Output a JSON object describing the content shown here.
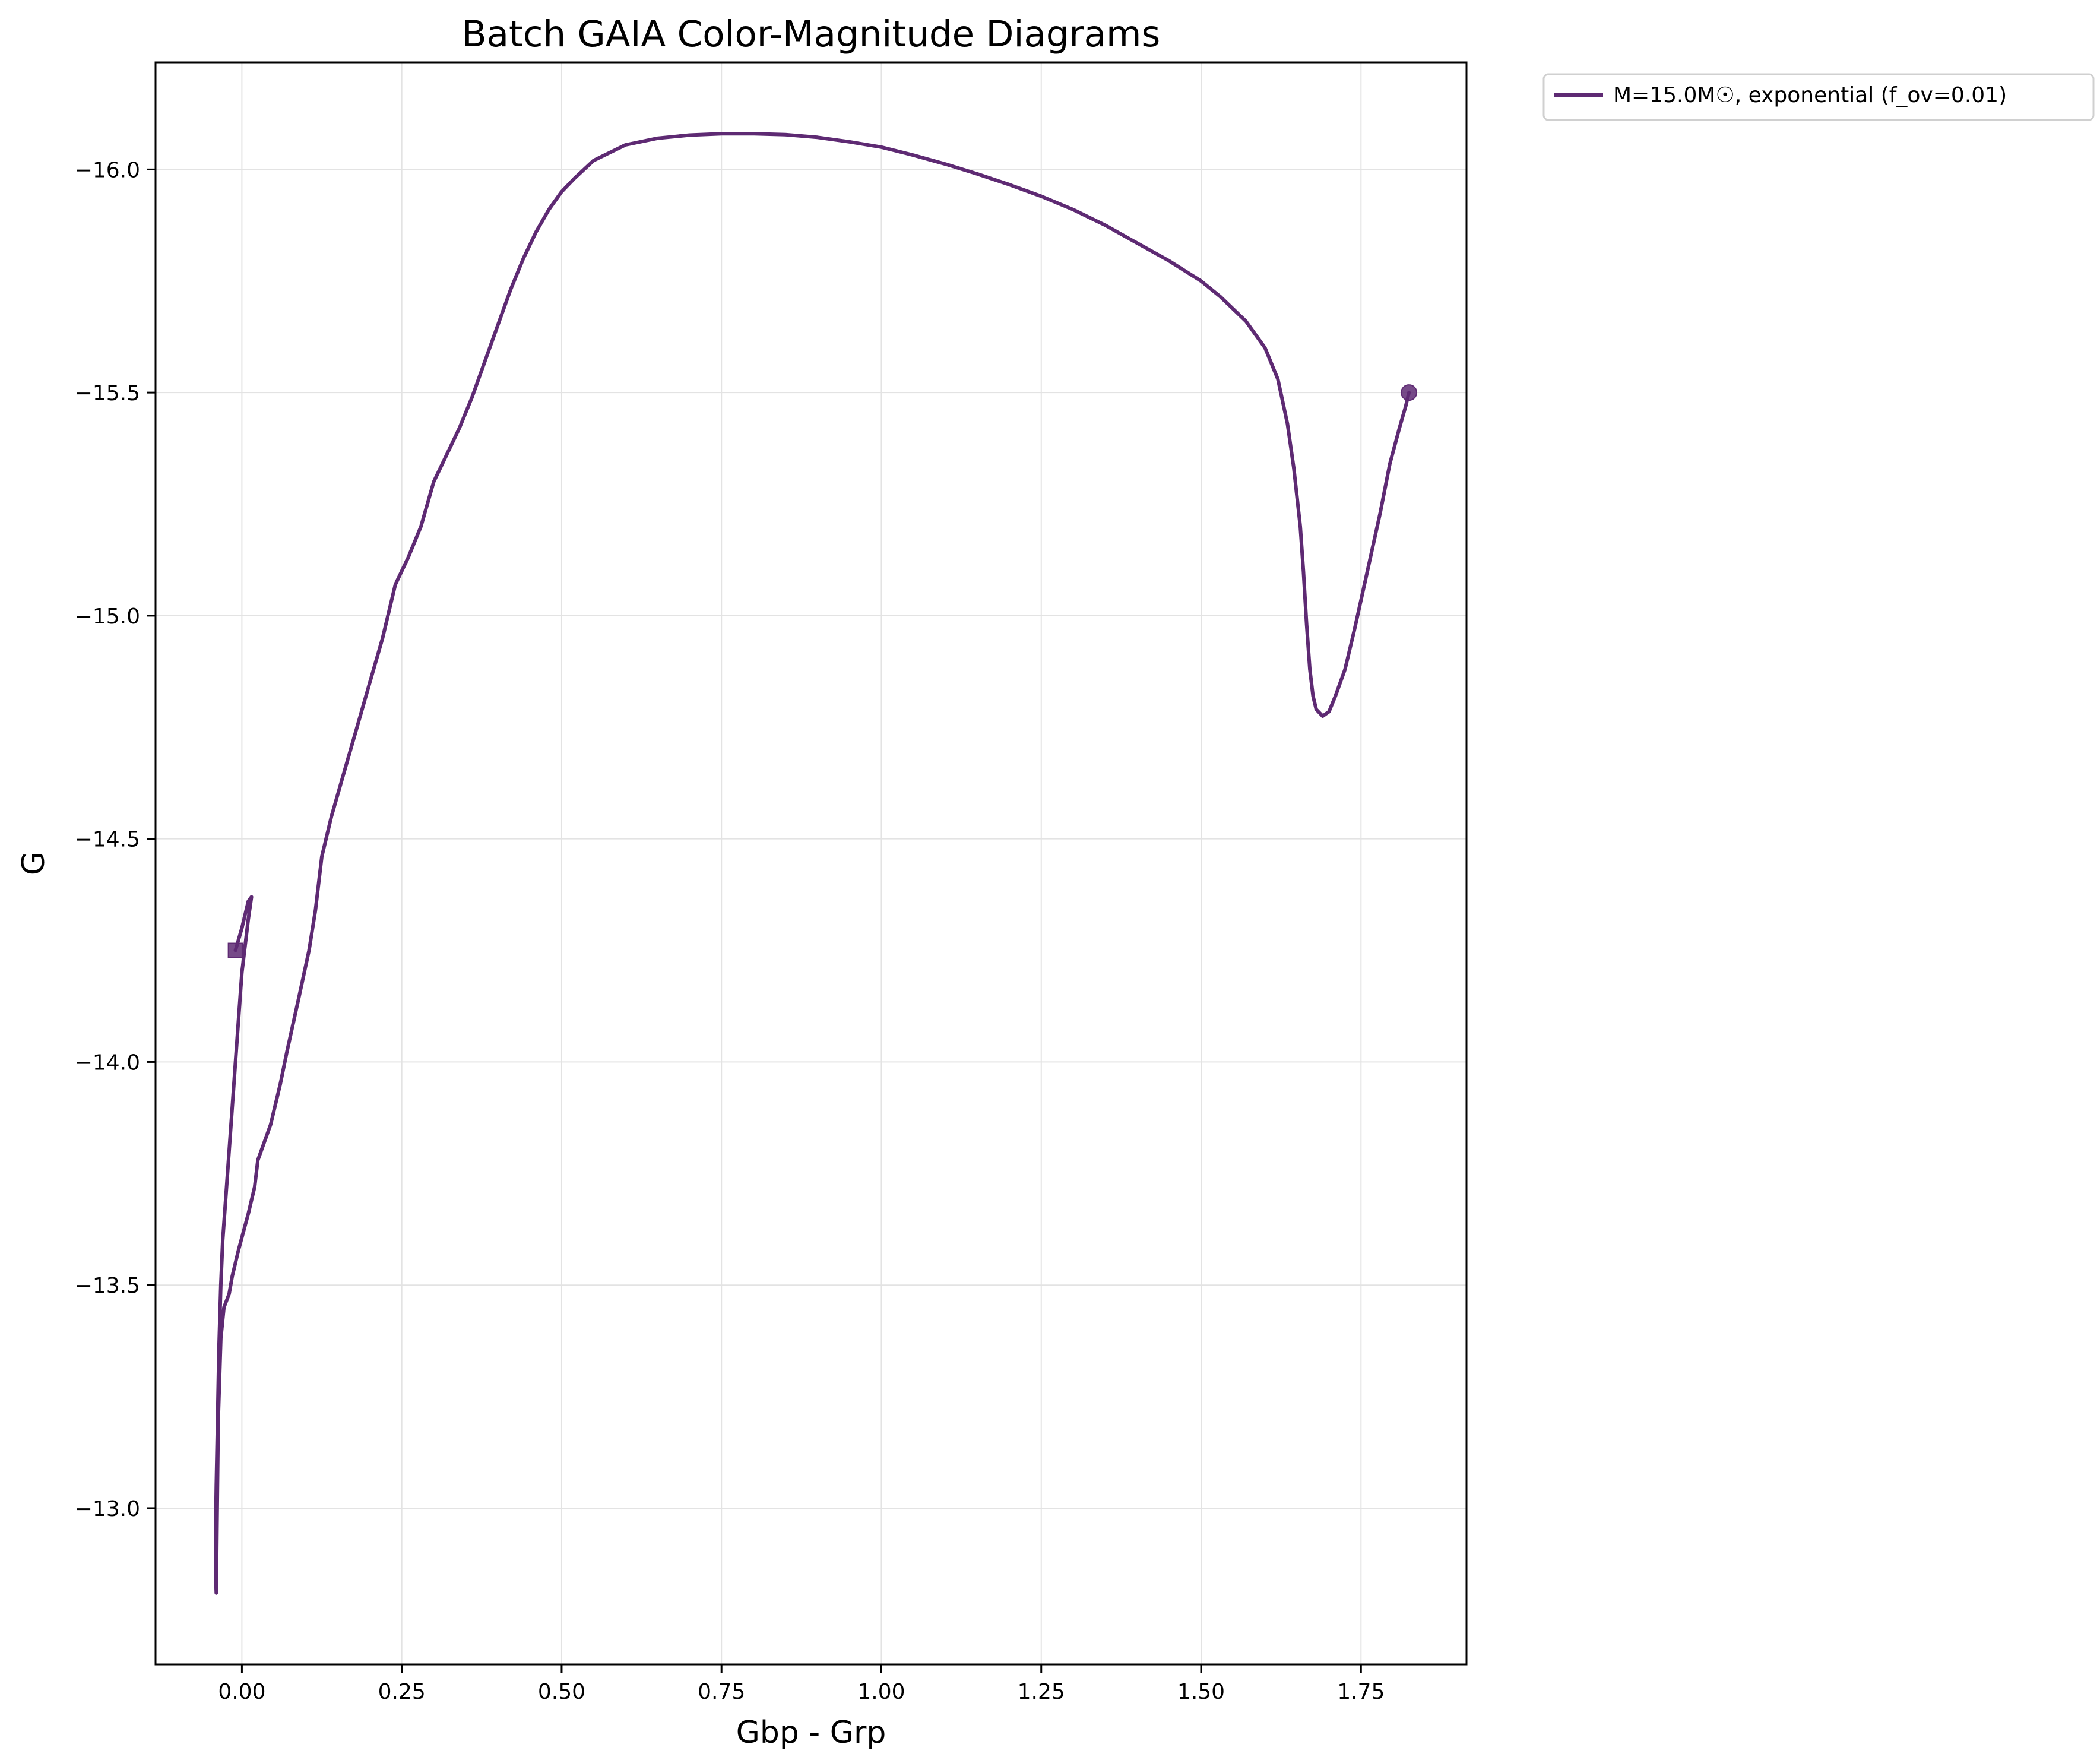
{
  "chart_data": {
    "type": "line",
    "title": "Batch GAIA Color-Magnitude Diagrams",
    "xlabel": "Gbp - Grp",
    "ylabel": "G",
    "xlim": [
      -0.135,
      1.915
    ],
    "ylim": [
      -12.65,
      -16.24
    ],
    "y_inverted": true,
    "grid": true,
    "legend_position": "outside-top-right",
    "x_ticks": [
      0.0,
      0.25,
      0.5,
      0.75,
      1.0,
      1.25,
      1.5,
      1.75
    ],
    "x_tick_labels": [
      "0.00",
      "0.25",
      "0.50",
      "0.75",
      "1.00",
      "1.25",
      "1.50",
      "1.75"
    ],
    "y_ticks": [
      -13.0,
      -13.5,
      -14.0,
      -14.5,
      -15.0,
      -15.5,
      -16.0
    ],
    "y_tick_labels": [
      "−13.0",
      "−13.5",
      "−14.0",
      "−14.5",
      "−15.0",
      "−15.5",
      "−16.0"
    ],
    "series": [
      {
        "name": "M=15.0M☉, exponential (f_ov=0.01)",
        "color": "#5e2a73",
        "start_marker": "square",
        "end_marker": "circle",
        "points": [
          [
            -0.01,
            -14.25
          ],
          [
            0.0,
            -14.3
          ],
          [
            0.01,
            -14.36
          ],
          [
            0.015,
            -14.37
          ],
          [
            0.01,
            -14.32
          ],
          [
            0.0,
            -14.2
          ],
          [
            -0.01,
            -14.0
          ],
          [
            -0.02,
            -13.8
          ],
          [
            -0.025,
            -13.7
          ],
          [
            -0.03,
            -13.6
          ],
          [
            -0.033,
            -13.5
          ],
          [
            -0.036,
            -13.35
          ],
          [
            -0.038,
            -13.2
          ],
          [
            -0.04,
            -13.05
          ],
          [
            -0.041,
            -12.95
          ],
          [
            -0.041,
            -12.85
          ],
          [
            -0.04,
            -12.81
          ],
          [
            -0.039,
            -12.95
          ],
          [
            -0.037,
            -13.2
          ],
          [
            -0.033,
            -13.38
          ],
          [
            -0.028,
            -13.45
          ],
          [
            -0.02,
            -13.48
          ],
          [
            -0.015,
            -13.52
          ],
          [
            -0.005,
            -13.58
          ],
          [
            0.01,
            -13.66
          ],
          [
            0.02,
            -13.72
          ],
          [
            0.025,
            -13.78
          ],
          [
            0.035,
            -13.82
          ],
          [
            0.045,
            -13.86
          ],
          [
            0.06,
            -13.95
          ],
          [
            0.07,
            -14.02
          ],
          [
            0.09,
            -14.15
          ],
          [
            0.105,
            -14.25
          ],
          [
            0.115,
            -14.34
          ],
          [
            0.125,
            -14.46
          ],
          [
            0.135,
            -14.52
          ],
          [
            0.14,
            -14.55
          ],
          [
            0.16,
            -14.65
          ],
          [
            0.18,
            -14.75
          ],
          [
            0.2,
            -14.85
          ],
          [
            0.22,
            -14.95
          ],
          [
            0.24,
            -15.07
          ],
          [
            0.26,
            -15.13
          ],
          [
            0.28,
            -15.2
          ],
          [
            0.3,
            -15.3
          ],
          [
            0.32,
            -15.36
          ],
          [
            0.34,
            -15.42
          ],
          [
            0.36,
            -15.49
          ],
          [
            0.38,
            -15.57
          ],
          [
            0.4,
            -15.65
          ],
          [
            0.42,
            -15.73
          ],
          [
            0.44,
            -15.8
          ],
          [
            0.46,
            -15.86
          ],
          [
            0.48,
            -15.91
          ],
          [
            0.5,
            -15.95
          ],
          [
            0.52,
            -15.98
          ],
          [
            0.55,
            -16.02
          ],
          [
            0.6,
            -16.055
          ],
          [
            0.65,
            -16.07
          ],
          [
            0.7,
            -16.077
          ],
          [
            0.75,
            -16.08
          ],
          [
            0.8,
            -16.08
          ],
          [
            0.85,
            -16.078
          ],
          [
            0.9,
            -16.072
          ],
          [
            0.95,
            -16.062
          ],
          [
            1.0,
            -16.05
          ],
          [
            1.05,
            -16.032
          ],
          [
            1.1,
            -16.012
          ],
          [
            1.15,
            -15.99
          ],
          [
            1.2,
            -15.966
          ],
          [
            1.25,
            -15.94
          ],
          [
            1.3,
            -15.91
          ],
          [
            1.35,
            -15.875
          ],
          [
            1.4,
            -15.835
          ],
          [
            1.45,
            -15.795
          ],
          [
            1.5,
            -15.75
          ],
          [
            1.53,
            -15.715
          ],
          [
            1.57,
            -15.66
          ],
          [
            1.6,
            -15.6
          ],
          [
            1.62,
            -15.53
          ],
          [
            1.635,
            -15.43
          ],
          [
            1.645,
            -15.33
          ],
          [
            1.655,
            -15.2
          ],
          [
            1.66,
            -15.1
          ],
          [
            1.665,
            -14.98
          ],
          [
            1.67,
            -14.88
          ],
          [
            1.675,
            -14.82
          ],
          [
            1.68,
            -14.79
          ],
          [
            1.69,
            -14.775
          ],
          [
            1.7,
            -14.785
          ],
          [
            1.71,
            -14.82
          ],
          [
            1.725,
            -14.88
          ],
          [
            1.74,
            -14.97
          ],
          [
            1.76,
            -15.1
          ],
          [
            1.78,
            -15.23
          ],
          [
            1.795,
            -15.34
          ],
          [
            1.81,
            -15.42
          ],
          [
            1.82,
            -15.47
          ],
          [
            1.825,
            -15.5
          ]
        ]
      }
    ]
  }
}
